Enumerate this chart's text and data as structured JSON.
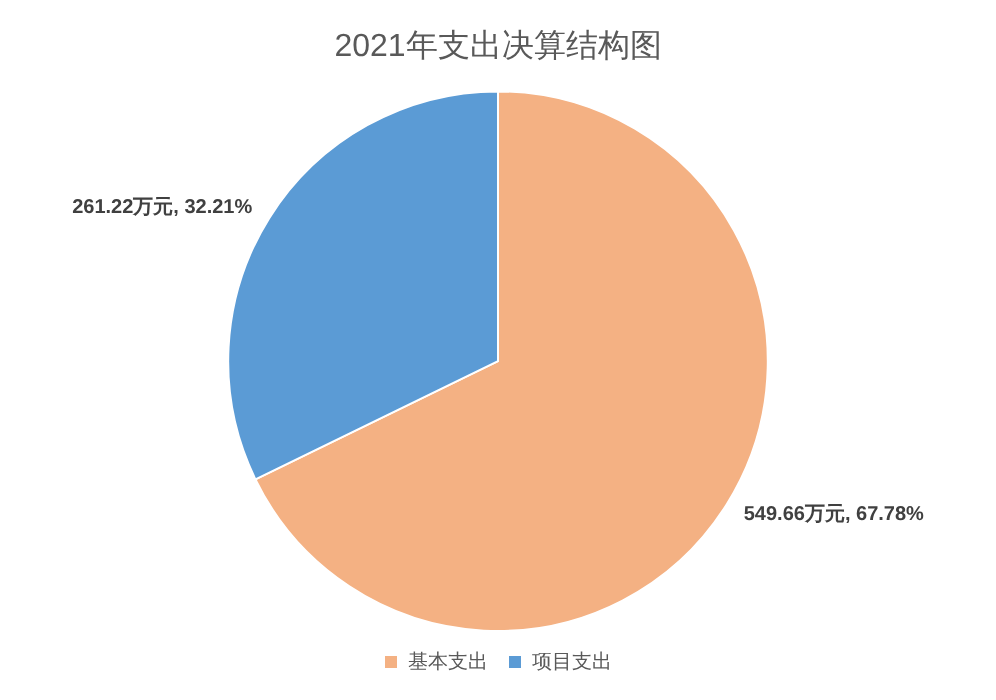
{
  "chart_data": {
    "type": "pie",
    "title": "2021年支出决算结构图",
    "categories": [
      "基本支出",
      "项目支出"
    ],
    "values": [
      549.66,
      261.22
    ],
    "colors": [
      "#f4b183",
      "#5b9bd5"
    ],
    "value_labels": [
      "549.66万元, 67.78%",
      "261.22万元, 32.21%"
    ],
    "legend": "bottom"
  }
}
